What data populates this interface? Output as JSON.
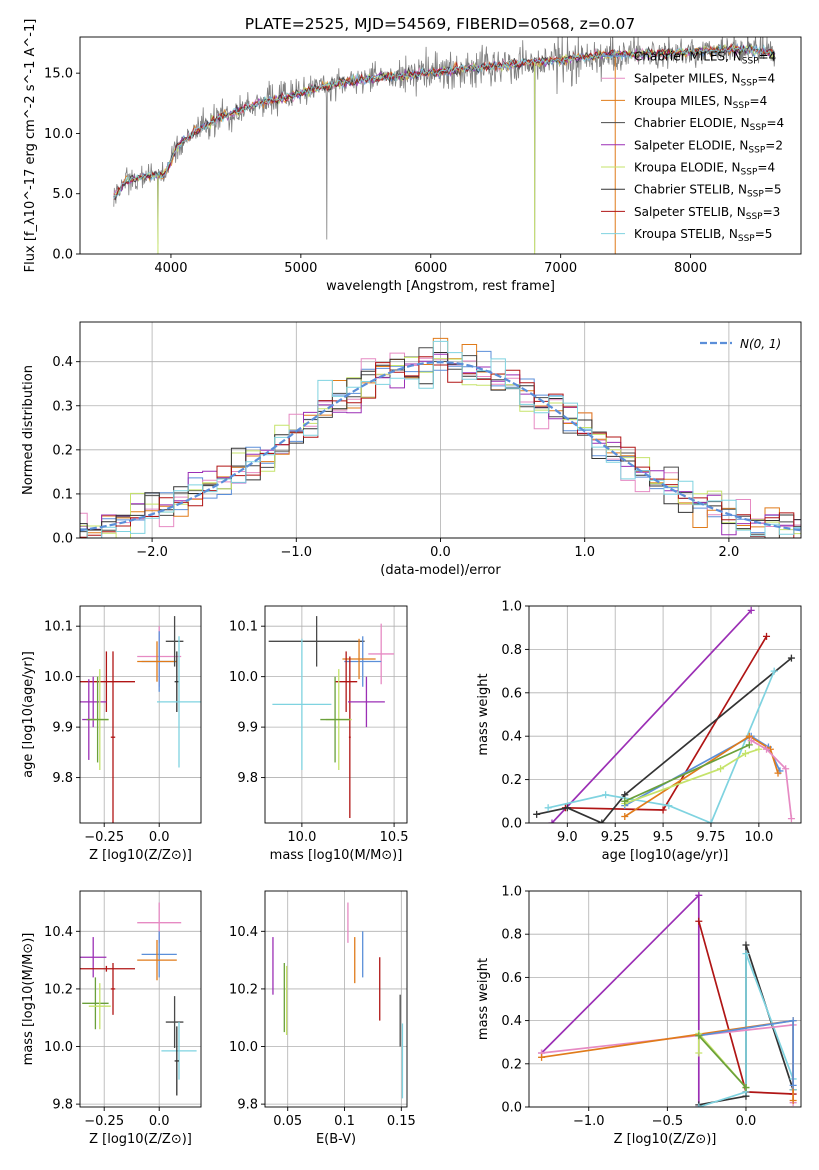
{
  "figure_title": "PLATE=2525, MJD=54569, FIBERID=0568, z=0.07",
  "chart_data": [
    {
      "id": "spectrum",
      "type": "line",
      "title": "PLATE=2525, MJD=54569, FIBERID=0568, z=0.07",
      "xlabel": "wavelength [Angstrom, rest frame]",
      "ylabel": "Flux [f_λ10^-17 erg cm^-2 s^-1 A^-1]",
      "xlim": [
        3300,
        8850
      ],
      "ylim": [
        0,
        18
      ],
      "xticks": [
        4000,
        5000,
        6000,
        7000,
        8000
      ],
      "yticks": [
        0,
        5,
        10,
        15
      ],
      "grid": false,
      "legend_position": "top-right",
      "continuum": {
        "x": [
          3550,
          3650,
          3800,
          3950,
          4050,
          4200,
          4350,
          4500,
          4700,
          4900,
          5100,
          5300,
          5500,
          5800,
          6100,
          6400,
          6700,
          7000,
          7300,
          7600,
          7900,
          8200,
          8450,
          8650
        ],
        "y": [
          4.5,
          6.0,
          6.5,
          6.5,
          9.0,
          10.2,
          11.2,
          11.8,
          12.6,
          13.0,
          13.7,
          14.2,
          14.5,
          14.8,
          15.2,
          15.5,
          15.8,
          16.1,
          16.5,
          16.6,
          16.7,
          16.9,
          17.0,
          16.6
        ]
      },
      "series": [
        {
          "name": "Chabrier MILES, N_SSP=4",
          "color": "#5b8fd9"
        },
        {
          "name": "Salpeter MILES, N_SSP=4",
          "color": "#e68ac3"
        },
        {
          "name": "Kroupa MILES, N_SSP=4",
          "color": "#e07b1a"
        },
        {
          "name": "Chabrier ELODIE, N_SSP=4",
          "color": "#4a4a4a"
        },
        {
          "name": "Salpeter ELODIE, N_SSP=2",
          "color": "#9b2fb5"
        },
        {
          "name": "Kroupa ELODIE, N_SSP=4",
          "color": "#c5e36a"
        },
        {
          "name": "Chabrier STELIB, N_SSP=5",
          "color": "#333333"
        },
        {
          "name": "Salpeter STELIB, N_SSP=3",
          "color": "#b01515"
        },
        {
          "name": "Kroupa STELIB, N_SSP=5",
          "color": "#7fd3e0"
        }
      ],
      "data_color": "#808080"
    },
    {
      "id": "residuals",
      "type": "bar",
      "xlabel": "(data-model)/error",
      "ylabel": "Normed distribution",
      "xlim": [
        -2.5,
        2.5
      ],
      "ylim": [
        0,
        0.49
      ],
      "xticks": [
        -2,
        -1,
        0,
        1,
        2
      ],
      "yticks": [
        0.0,
        0.1,
        0.2,
        0.3,
        0.4
      ],
      "grid": true,
      "legend_position": "top-right",
      "legend": "N(0, 1)",
      "bin_width": 0.1,
      "gaussian_color": "#5b8fd9"
    },
    {
      "id": "age-vs-Z",
      "type": "scatter",
      "xlabel": "Z [log10(Z/Z⊙)]",
      "ylabel": "age [log10(age/yr)]",
      "xlim": [
        -0.36,
        0.19
      ],
      "ylim": [
        9.71,
        10.14
      ],
      "xticks": [
        -0.25,
        0.0
      ],
      "yticks": [
        9.8,
        9.9,
        10.0,
        10.1
      ],
      "grid": true,
      "points": [
        {
          "x": 0.0,
          "y": 10.04,
          "xerr": 0.1,
          "yerr": 0.06,
          "color": "#e68ac3"
        },
        {
          "x": 0.0,
          "y": 10.03,
          "xerr": 0.08,
          "yerr": 0.06,
          "color": "#5b8fd9"
        },
        {
          "x": -0.01,
          "y": 10.03,
          "xerr": 0.09,
          "yerr": 0.04,
          "color": "#e07b1a"
        },
        {
          "x": 0.07,
          "y": 10.07,
          "xerr": 0.04,
          "yerr": 0.05,
          "color": "#4a4a4a"
        },
        {
          "x": 0.08,
          "y": 9.99,
          "xerr": 0.01,
          "yerr": 0.06,
          "color": "#333333"
        },
        {
          "x": 0.09,
          "y": 9.95,
          "xerr": 0.1,
          "yerr": 0.13,
          "color": "#7fd3e0"
        },
        {
          "x": -0.24,
          "y": 9.99,
          "xerr": 0.13,
          "yerr": 0.06,
          "color": "#b01515"
        },
        {
          "x": -0.21,
          "y": 9.88,
          "xerr": 0.01,
          "yerr": 0.17,
          "color": "#b01515"
        },
        {
          "x": -0.3,
          "y": 9.95,
          "xerr": 0.06,
          "yerr": 0.05,
          "color": "#9b2fb5"
        },
        {
          "x": -0.32,
          "y": 9.915,
          "xerr": 0.03,
          "yerr": 0.08,
          "color": "#9b2fb5"
        },
        {
          "x": -0.27,
          "y": 9.915,
          "xerr": 0.04,
          "yerr": 0.1,
          "color": "#c5e36a"
        },
        {
          "x": -0.28,
          "y": 9.915,
          "xerr": 0.05,
          "yerr": 0.085,
          "color": "#6aa03a"
        }
      ]
    },
    {
      "id": "age-vs-mass",
      "type": "scatter",
      "xlabel": "mass [log10(M/M⊙)]",
      "ylabel": "",
      "xlim": [
        9.8,
        10.57
      ],
      "ylim": [
        9.71,
        10.14
      ],
      "xticks": [
        10.0,
        10.5
      ],
      "yticks": [
        9.8,
        9.9,
        10.0,
        10.1
      ],
      "grid": true,
      "points": [
        {
          "x": 10.08,
          "y": 10.07,
          "xerr": 0.26,
          "yerr": 0.05,
          "color": "#4a4a4a"
        },
        {
          "x": 10.0,
          "y": 9.945,
          "xerr": 0.16,
          "yerr": 0.13,
          "color": "#7fd3e0"
        },
        {
          "x": 10.43,
          "y": 10.045,
          "xerr": 0.07,
          "yerr": 0.06,
          "color": "#e68ac3"
        },
        {
          "x": 10.33,
          "y": 10.03,
          "xerr": 0.1,
          "yerr": 0.05,
          "color": "#5b8fd9"
        },
        {
          "x": 10.31,
          "y": 10.035,
          "xerr": 0.09,
          "yerr": 0.04,
          "color": "#e07b1a"
        },
        {
          "x": 10.24,
          "y": 9.99,
          "xerr": 0.06,
          "yerr": 0.06,
          "color": "#b01515"
        },
        {
          "x": 10.26,
          "y": 9.88,
          "xerr": 0.005,
          "yerr": 0.16,
          "color": "#b01515"
        },
        {
          "x": 10.35,
          "y": 9.95,
          "xerr": 0.1,
          "yerr": 0.05,
          "color": "#9b2fb5"
        },
        {
          "x": 10.2,
          "y": 9.915,
          "xerr": 0.07,
          "yerr": 0.1,
          "color": "#c5e36a"
        },
        {
          "x": 10.18,
          "y": 9.915,
          "xerr": 0.08,
          "yerr": 0.085,
          "color": "#6aa03a"
        }
      ]
    },
    {
      "id": "weight-vs-age",
      "type": "line",
      "xlabel": "age [log10(age/yr)]",
      "ylabel": "mass weight",
      "xlim": [
        8.8,
        10.22
      ],
      "ylim": [
        0,
        1.0
      ],
      "xticks": [
        9.0,
        9.25,
        9.5,
        9.75,
        10.0
      ],
      "yticks": [
        0.0,
        0.2,
        0.4,
        0.6,
        0.8,
        1.0
      ],
      "grid": true,
      "series": [
        {
          "name": "Salpeter ELODIE",
          "color": "#9b2fb5",
          "x": [
            8.92,
            9.96
          ],
          "y": [
            0.0,
            0.98
          ]
        },
        {
          "name": "Salpeter STELIB",
          "color": "#b01515",
          "x": [
            8.99,
            9.5,
            10.04
          ],
          "y": [
            0.07,
            0.06,
            0.86
          ]
        },
        {
          "name": "Chabrier STELIB",
          "color": "#333333",
          "x": [
            8.84,
            9.0,
            9.18,
            9.3,
            10.17
          ],
          "y": [
            0.04,
            0.07,
            0.0,
            0.13,
            0.76
          ]
        },
        {
          "name": "Kroupa STELIB",
          "color": "#7fd3e0",
          "x": [
            8.9,
            9.2,
            9.53,
            9.75,
            10.08
          ],
          "y": [
            0.07,
            0.13,
            0.08,
            0.0,
            0.7
          ]
        },
        {
          "name": "Chabrier MILES",
          "color": "#5b8fd9",
          "x": [
            9.3,
            9.96,
            10.05,
            10.11
          ],
          "y": [
            0.08,
            0.4,
            0.35,
            0.24
          ]
        },
        {
          "name": "Kroupa MILES",
          "color": "#e07b1a",
          "x": [
            9.3,
            9.95,
            10.06,
            10.1
          ],
          "y": [
            0.03,
            0.4,
            0.34,
            0.23
          ]
        },
        {
          "name": "Salpeter MILES",
          "color": "#e68ac3",
          "x": [
            9.96,
            10.04,
            10.14,
            10.17
          ],
          "y": [
            0.38,
            0.34,
            0.25,
            0.02
          ]
        },
        {
          "name": "Kroupa ELODIE",
          "color": "#c5e36a",
          "x": [
            9.3,
            9.8,
            9.93,
            10.0
          ],
          "y": [
            0.09,
            0.25,
            0.32,
            0.34
          ]
        },
        {
          "name": "Chabrier ELODIE",
          "color": "#6aa03a",
          "x": [
            9.3,
            9.95
          ],
          "y": [
            0.1,
            0.36
          ]
        }
      ]
    },
    {
      "id": "mass-vs-Z",
      "type": "scatter",
      "xlabel": "Z [log10(Z/Z⊙)]",
      "ylabel": "mass [log10(M/M⊙)]",
      "xlim": [
        -0.36,
        0.19
      ],
      "ylim": [
        9.79,
        10.54
      ],
      "xticks": [
        -0.25,
        0.0
      ],
      "yticks": [
        9.8,
        10.0,
        10.2,
        10.4
      ],
      "grid": true,
      "points": [
        {
          "x": 0.0,
          "y": 10.43,
          "xerr": 0.1,
          "yerr": 0.07,
          "color": "#e68ac3"
        },
        {
          "x": 0.0,
          "y": 10.32,
          "xerr": 0.08,
          "yerr": 0.08,
          "color": "#5b8fd9"
        },
        {
          "x": -0.01,
          "y": 10.3,
          "xerr": 0.09,
          "yerr": 0.07,
          "color": "#e07b1a"
        },
        {
          "x": 0.07,
          "y": 10.085,
          "xerr": 0.04,
          "yerr": 0.09,
          "color": "#4a4a4a"
        },
        {
          "x": 0.09,
          "y": 9.985,
          "xerr": 0.08,
          "yerr": 0.1,
          "color": "#7fd3e0"
        },
        {
          "x": 0.08,
          "y": 9.95,
          "xerr": 0.01,
          "yerr": 0.12,
          "color": "#333333"
        },
        {
          "x": -0.3,
          "y": 10.31,
          "xerr": 0.06,
          "yerr": 0.07,
          "color": "#9b2fb5"
        },
        {
          "x": -0.24,
          "y": 10.27,
          "xerr": 0.13,
          "yerr": 0.01,
          "color": "#b01515"
        },
        {
          "x": -0.21,
          "y": 10.2,
          "xerr": 0.01,
          "yerr": 0.09,
          "color": "#b01515"
        },
        {
          "x": -0.29,
          "y": 10.15,
          "xerr": 0.06,
          "yerr": 0.09,
          "color": "#6aa03a"
        },
        {
          "x": -0.27,
          "y": 10.14,
          "xerr": 0.05,
          "yerr": 0.08,
          "color": "#c5e36a"
        }
      ]
    },
    {
      "id": "mass-vs-ebv",
      "type": "scatter",
      "xlabel": "E(B-V)",
      "ylabel": "",
      "xlim": [
        0.03,
        0.155
      ],
      "ylim": [
        9.79,
        10.54
      ],
      "xticks": [
        0.05,
        0.1,
        0.15
      ],
      "yticks": [
        9.8,
        10.0,
        10.2,
        10.4
      ],
      "grid": true,
      "points": [
        {
          "x": 0.037,
          "y": 10.28,
          "xerr": 0.0,
          "yerr": 0.1,
          "color": "#9b2fb5"
        },
        {
          "x": 0.047,
          "y": 10.17,
          "xerr": 0.0,
          "yerr": 0.12,
          "color": "#6aa03a"
        },
        {
          "x": 0.049,
          "y": 10.16,
          "xerr": 0.0,
          "yerr": 0.12,
          "color": "#c5e36a"
        },
        {
          "x": 0.103,
          "y": 10.43,
          "xerr": 0.0,
          "yerr": 0.07,
          "color": "#e68ac3"
        },
        {
          "x": 0.109,
          "y": 10.3,
          "xerr": 0.0,
          "yerr": 0.08,
          "color": "#e07b1a"
        },
        {
          "x": 0.116,
          "y": 10.32,
          "xerr": 0.0,
          "yerr": 0.08,
          "color": "#5b8fd9"
        },
        {
          "x": 0.131,
          "y": 10.2,
          "xerr": 0.0,
          "yerr": 0.11,
          "color": "#b01515"
        },
        {
          "x": 0.149,
          "y": 10.09,
          "xerr": 0.0,
          "yerr": 0.09,
          "color": "#4a4a4a"
        },
        {
          "x": 0.151,
          "y": 9.95,
          "xerr": 0.0,
          "yerr": 0.13,
          "color": "#7fd3e0"
        }
      ]
    },
    {
      "id": "weight-vs-Z",
      "type": "line",
      "xlabel": "Z [log10(Z/Z⊙)]",
      "ylabel": "mass weight",
      "xlim": [
        -1.38,
        0.35
      ],
      "ylim": [
        0,
        1.0
      ],
      "xticks": [
        -1.0,
        -0.5,
        0.0
      ],
      "yticks": [
        0.0,
        0.2,
        0.4,
        0.6,
        0.8,
        1.0
      ],
      "grid": true,
      "series": [
        {
          "name": "Salpeter ELODIE",
          "color": "#9b2fb5",
          "x": [
            -0.3,
            -0.3,
            -1.3
          ],
          "y": [
            0.0,
            0.98,
            0.25
          ]
        },
        {
          "name": "Salpeter STELIB",
          "color": "#b01515",
          "x": [
            -0.3,
            0.0,
            0.3
          ],
          "y": [
            0.86,
            0.07,
            0.06
          ]
        },
        {
          "name": "Chabrier STELIB",
          "color": "#333333",
          "x": [
            -0.3,
            0.0,
            0.0,
            0.3
          ],
          "y": [
            0.01,
            0.05,
            0.75,
            0.08
          ]
        },
        {
          "name": "Kroupa STELIB",
          "color": "#7fd3e0",
          "x": [
            -0.3,
            0.0,
            0.0,
            0.3,
            0.3
          ],
          "y": [
            0.0,
            0.07,
            0.71,
            0.13,
            0.08
          ]
        },
        {
          "name": "Salpeter MILES",
          "color": "#e68ac3",
          "x": [
            -1.3,
            0.3,
            0.3
          ],
          "y": [
            0.25,
            0.38,
            0.02
          ]
        },
        {
          "name": "Kroupa MILES",
          "color": "#e07b1a",
          "x": [
            -1.3,
            0.3,
            0.3
          ],
          "y": [
            0.23,
            0.4,
            0.03
          ]
        },
        {
          "name": "Chabrier MILES",
          "color": "#5b8fd9",
          "x": [
            -0.3,
            0.3,
            0.3
          ],
          "y": [
            0.33,
            0.4,
            0.1
          ]
        },
        {
          "name": "Kroupa ELODIE",
          "color": "#c5e36a",
          "x": [
            -0.3,
            -0.3,
            0.0
          ],
          "y": [
            0.25,
            0.34,
            0.09
          ]
        },
        {
          "name": "Chabrier ELODIE",
          "color": "#6aa03a",
          "x": [
            -0.3,
            0.0
          ],
          "y": [
            0.33,
            0.09
          ]
        }
      ]
    }
  ]
}
